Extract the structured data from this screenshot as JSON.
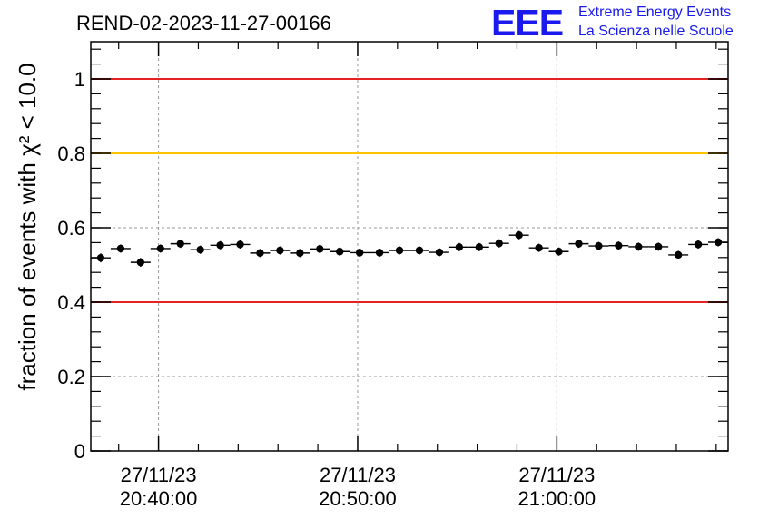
{
  "chart_data": {
    "type": "scatter",
    "title": "REND-02-2023-11-27-00166",
    "logo": {
      "text": "EEE",
      "line1": "Extreme Energy Events",
      "line2": "La Scienza nelle Scuole",
      "color": "#1a1aee"
    },
    "ylabel": "fraction of events with χ² < 10.0",
    "ylim": [
      0,
      1.1
    ],
    "yticks": [
      {
        "v": 0,
        "label": "0"
      },
      {
        "v": 0.2,
        "label": "0.2"
      },
      {
        "v": 0.4,
        "label": "0.4"
      },
      {
        "v": 0.6,
        "label": "0.6"
      },
      {
        "v": 0.8,
        "label": "0.8"
      },
      {
        "v": 1,
        "label": "1"
      }
    ],
    "xlim_minutes": [
      -3.4,
      28.6
    ],
    "xticks": [
      {
        "v": 0,
        "date": "27/11/23",
        "time": "20:40:00"
      },
      {
        "v": 10,
        "date": "27/11/23",
        "time": "20:50:00"
      },
      {
        "v": 20,
        "date": "27/11/23",
        "time": "21:00:00"
      }
    ],
    "grid": true,
    "reference_lines": [
      {
        "y": 1.0,
        "color": "#e52222"
      },
      {
        "y": 0.8,
        "color": "#ffc400"
      },
      {
        "y": 0.4,
        "color": "#e52222"
      }
    ],
    "series": [
      {
        "x": [
          -2.9,
          -1.9,
          -0.9,
          0.1,
          1.1,
          2.1,
          3.1,
          4.1,
          5.1,
          6.1,
          7.1,
          8.1,
          9.1,
          10.1,
          11.1,
          12.1,
          13.1,
          14.1,
          15.1,
          16.1,
          17.1,
          18.1,
          19.1,
          20.1,
          21.1,
          22.1,
          23.1,
          24.1,
          25.1,
          26.1,
          27.1,
          28.1
        ],
        "y": [
          0.519,
          0.544,
          0.507,
          0.544,
          0.557,
          0.541,
          0.553,
          0.555,
          0.532,
          0.539,
          0.532,
          0.543,
          0.536,
          0.533,
          0.533,
          0.539,
          0.539,
          0.534,
          0.548,
          0.548,
          0.558,
          0.58,
          0.546,
          0.536,
          0.557,
          0.551,
          0.552,
          0.549,
          0.549,
          0.527,
          0.555,
          0.561
        ],
        "yerr": [
          0.012,
          0.011,
          0.012,
          0.011,
          0.011,
          0.011,
          0.011,
          0.011,
          0.011,
          0.011,
          0.011,
          0.011,
          0.011,
          0.011,
          0.011,
          0.011,
          0.011,
          0.011,
          0.011,
          0.011,
          0.011,
          0.011,
          0.011,
          0.011,
          0.011,
          0.011,
          0.011,
          0.011,
          0.011,
          0.011,
          0.011,
          0.011
        ],
        "xerr_minutes": 0.5
      }
    ]
  }
}
